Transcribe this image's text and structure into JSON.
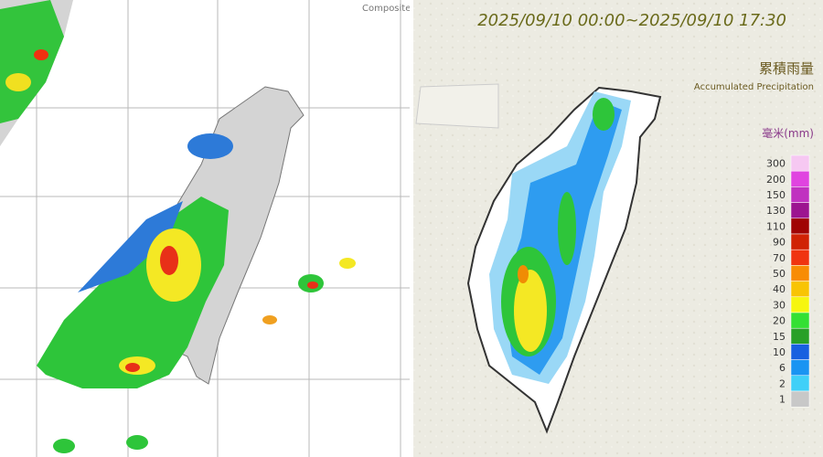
{
  "left_panel": {
    "label": "Composite"
  },
  "right_panel": {
    "time_range": "2025/09/10 00:00~2025/09/10 17:30",
    "title_zh": "累積雨量",
    "title_en": "Accumulated Precipitation",
    "unit": "毫米(mm)",
    "legend": [
      {
        "label": "300",
        "color": "#f6c8f2"
      },
      {
        "label": "200",
        "color": "#e044e0"
      },
      {
        "label": "150",
        "color": "#c032c0"
      },
      {
        "label": "130",
        "color": "#9c1490"
      },
      {
        "label": "110",
        "color": "#a00404"
      },
      {
        "label": "90",
        "color": "#d02204"
      },
      {
        "label": "70",
        "color": "#f03410"
      },
      {
        "label": "50",
        "color": "#f88c04"
      },
      {
        "label": "40",
        "color": "#f8c404"
      },
      {
        "label": "30",
        "color": "#f6f610"
      },
      {
        "label": "20",
        "color": "#34e034"
      },
      {
        "label": "15",
        "color": "#28a028"
      },
      {
        "label": "10",
        "color": "#1860e0"
      },
      {
        "label": "6",
        "color": "#1a94f2"
      },
      {
        "label": "2",
        "color": "#40d0f8"
      },
      {
        "label": "1",
        "color": "#c8c8c8"
      }
    ]
  }
}
